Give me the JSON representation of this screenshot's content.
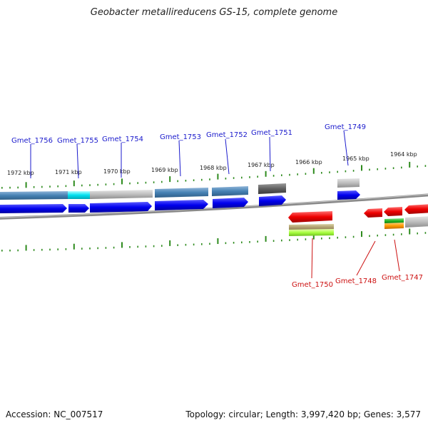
{
  "title": "Geobacter metallireducens GS-15, complete genome",
  "footer": {
    "accession": "Accession: NC_007517",
    "summary": "Topology: circular; Length: 3,997,420 bp; Genes: 3,577"
  },
  "colors": {
    "blue_label": "#1a1acc",
    "red_label": "#cc1010",
    "tick": "#2e8b1e",
    "backbone": "#808080"
  },
  "scale_labels": [
    "1972 kbp",
    "1971 kbp",
    "1970 kbp",
    "1969 kbp",
    "1968 kbp",
    "1967 kbp",
    "1966 kbp",
    "1965 kbp",
    "1964 kbp"
  ],
  "gene_labels_top": [
    "Gmet_1756",
    "Gmet_1755",
    "Gmet_1754",
    "Gmet_1753",
    "Gmet_1752",
    "Gmet_1751",
    "Gmet_1749"
  ],
  "gene_labels_bottom": [
    "Gmet_1750",
    "Gmet_1748",
    "Gmet_1747"
  ]
}
